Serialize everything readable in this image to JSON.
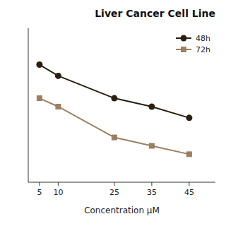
{
  "chart_data": {
    "type": "line",
    "title": "Liver Cancer Cell Line",
    "x_label": "Concentration μM",
    "x": [
      5,
      10,
      25,
      35,
      45
    ],
    "series": [
      {
        "name": "48h",
        "color": "#2a1f10",
        "marker": "circle",
        "values": [
          92,
          88,
          80,
          77,
          73
        ]
      },
      {
        "name": "72h",
        "color": "#9a8060",
        "marker": "square",
        "values": [
          80,
          77,
          66,
          63,
          60
        ]
      }
    ],
    "xlim": [
      2,
      52
    ],
    "xticks": [
      5,
      10,
      25,
      35,
      45
    ],
    "ylim": [
      50,
      105
    ],
    "tick_labels": "x",
    "grid": false,
    "legend": "upper right"
  }
}
